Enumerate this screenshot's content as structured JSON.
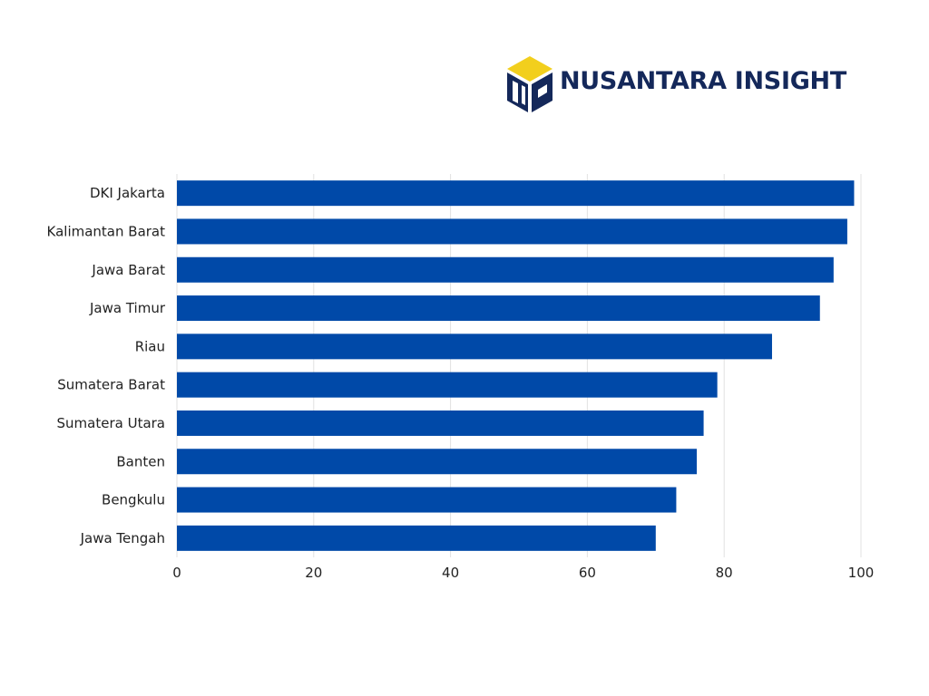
{
  "brand": {
    "name": "NUSANTARA INSIGHT",
    "logo_icon": "cube-n-logo-icon",
    "colors": {
      "text": "#14285a",
      "accent": "#f2cf1d",
      "dark": "#14285a"
    }
  },
  "chart_data": {
    "type": "bar",
    "orientation": "horizontal",
    "categories": [
      "DKI Jakarta",
      "Kalimantan Barat",
      "Jawa Barat",
      "Jawa Timur",
      "Riau",
      "Sumatera Barat",
      "Sumatera Utara",
      "Banten",
      "Bengkulu",
      "Jawa Tengah"
    ],
    "values": [
      99,
      98,
      96,
      94,
      87,
      79,
      77,
      76,
      73,
      70
    ],
    "xlim": [
      0,
      100
    ],
    "xticks": [
      "0",
      "20",
      "40",
      "60",
      "80",
      "100"
    ],
    "grid": "vertical",
    "bar_color": "#0049a8",
    "title": "",
    "xlabel": "",
    "ylabel": ""
  }
}
